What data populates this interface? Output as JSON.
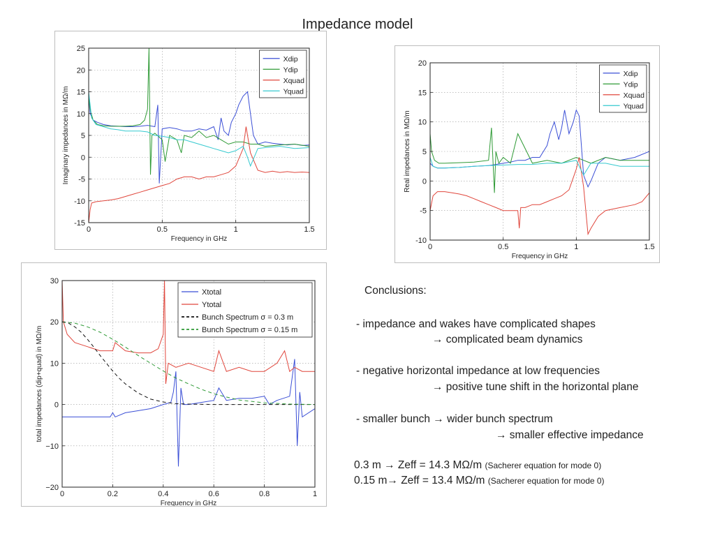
{
  "page": {
    "title": "Impedance model"
  },
  "conclusions": {
    "heading": "Conclusions:",
    "line1": "- impedance and wakes have complicated shapes",
    "line1b": "→ complicated beam dynamics",
    "line2": "- negative horizontal impedance at low frequencies",
    "line2b": "→ positive tune shift in the horizontal plane",
    "line3": "- smaller bunch → wider bunch spectrum",
    "line3b": "→ smaller effective impedance",
    "zeff1": "0.3 m → Zeff = 14.3 MΩ/m",
    "zeff1_note": "(Sacherer equation for mode 0)",
    "zeff2": "0.15 m→ Zeff = 13.4 MΩ/m",
    "zeff2_note": "(Sacherer equation for mode 0)"
  },
  "chart_data": [
    {
      "id": "imag",
      "type": "line",
      "xlabel": "Frequency in GHz",
      "ylabel": "Imaginary impedances in MΩ/m",
      "xlim": [
        0,
        1.5
      ],
      "ylim": [
        -15,
        25
      ],
      "xticks": [
        0,
        0.5,
        1,
        1.5
      ],
      "xtick_labels": [
        "0",
        "0.5",
        "1",
        "1.5"
      ],
      "yticks": [
        -15,
        -10,
        -5,
        0,
        5,
        10,
        15,
        20,
        25
      ],
      "ytick_labels": [
        "-15",
        "-10",
        "-5",
        "0",
        "5",
        "10",
        "15",
        "20",
        "25"
      ],
      "grid": true,
      "legend_position": "top-right",
      "series": [
        {
          "name": "Xdip",
          "color": "#3b4fd6",
          "dash": "",
          "x": [
            0.0,
            0.01,
            0.03,
            0.06,
            0.1,
            0.15,
            0.2,
            0.25,
            0.3,
            0.35,
            0.4,
            0.45,
            0.47,
            0.48,
            0.5,
            0.55,
            0.6,
            0.65,
            0.7,
            0.75,
            0.8,
            0.85,
            0.88,
            0.9,
            0.92,
            0.95,
            0.97,
            1.0,
            1.02,
            1.05,
            1.08,
            1.1,
            1.12,
            1.15,
            1.2,
            1.25,
            1.3,
            1.35,
            1.4,
            1.45,
            1.5
          ],
          "y": [
            14,
            10,
            8.5,
            8,
            7.5,
            7.2,
            7.1,
            7,
            7,
            7.1,
            7.3,
            7,
            12,
            -6,
            6.5,
            6.8,
            6.5,
            6,
            6,
            6.5,
            6.2,
            7,
            4,
            9,
            6,
            5,
            8,
            10,
            12,
            14,
            15,
            10,
            5,
            3,
            3.5,
            3.2,
            3,
            2.8,
            3,
            2.7,
            2.8
          ]
        },
        {
          "name": "Ydip",
          "color": "#2e9a35",
          "dash": "",
          "x": [
            0.0,
            0.01,
            0.03,
            0.06,
            0.1,
            0.15,
            0.2,
            0.25,
            0.3,
            0.35,
            0.38,
            0.4,
            0.41,
            0.42,
            0.43,
            0.45,
            0.5,
            0.52,
            0.55,
            0.6,
            0.63,
            0.65,
            0.7,
            0.75,
            0.8,
            0.85,
            0.9,
            0.95,
            1.0,
            1.05,
            1.1,
            1.15,
            1.2,
            1.3,
            1.4,
            1.5
          ],
          "y": [
            14,
            11,
            8.5,
            7.5,
            7.2,
            7.1,
            7.1,
            7.1,
            7.2,
            7.5,
            8.5,
            11,
            25,
            -4,
            5,
            5.5,
            4,
            -1,
            5,
            4,
            1,
            5,
            4.5,
            6,
            4.5,
            5,
            4,
            3,
            3.5,
            3.5,
            3,
            3,
            2.5,
            2.8,
            3,
            2.5
          ]
        },
        {
          "name": "Xquad",
          "color": "#e0463c",
          "dash": "",
          "x": [
            0.0,
            0.01,
            0.02,
            0.05,
            0.1,
            0.15,
            0.2,
            0.25,
            0.3,
            0.35,
            0.4,
            0.45,
            0.5,
            0.55,
            0.6,
            0.65,
            0.7,
            0.75,
            0.8,
            0.85,
            0.9,
            0.95,
            1.0,
            1.05,
            1.07,
            1.1,
            1.15,
            1.2,
            1.25,
            1.3,
            1.35,
            1.4,
            1.45,
            1.5
          ],
          "y": [
            -15,
            -12,
            -10.5,
            -10.2,
            -10,
            -9.8,
            -9.5,
            -9,
            -8.5,
            -8,
            -7.5,
            -7,
            -6.5,
            -6,
            -5,
            -4.5,
            -4.5,
            -5,
            -4.5,
            -4.5,
            -4,
            -3.5,
            -2,
            2,
            7,
            1,
            -3,
            -3.5,
            -3.2,
            -3.5,
            -3.3,
            -3.5,
            -3.4,
            -3.5
          ]
        },
        {
          "name": "Yquad",
          "color": "#35c9cf",
          "dash": "",
          "x": [
            0.0,
            0.02,
            0.05,
            0.1,
            0.15,
            0.2,
            0.25,
            0.3,
            0.35,
            0.4,
            0.45,
            0.5,
            0.55,
            0.6,
            0.65,
            0.7,
            0.75,
            0.8,
            0.85,
            0.9,
            0.95,
            1.0,
            1.05,
            1.08,
            1.1,
            1.15,
            1.2,
            1.3,
            1.4,
            1.5
          ],
          "y": [
            15,
            9,
            7.5,
            7,
            6.5,
            6.3,
            6,
            6,
            6,
            5.8,
            5,
            4.8,
            4.5,
            4,
            4,
            3.5,
            3,
            2.5,
            2,
            1.5,
            1,
            1.5,
            2.5,
            0,
            -2,
            2,
            2.2,
            2.5,
            2,
            2.2
          ]
        }
      ]
    },
    {
      "id": "real",
      "type": "line",
      "xlabel": "Frequency in GHz",
      "ylabel": "Real impedances in MΩ/m",
      "xlim": [
        0,
        1.5
      ],
      "ylim": [
        -10,
        20
      ],
      "xticks": [
        0,
        0.5,
        1,
        1.5
      ],
      "xtick_labels": [
        "0",
        "0.5",
        "1",
        "1.5"
      ],
      "yticks": [
        -10,
        -5,
        0,
        5,
        10,
        15,
        20
      ],
      "ytick_labels": [
        "-10",
        "-5",
        "0",
        "5",
        "10",
        "15",
        "20"
      ],
      "grid": true,
      "legend_position": "top-right",
      "series": [
        {
          "name": "Xdip",
          "color": "#3b4fd6",
          "dash": "",
          "x": [
            0.0,
            0.02,
            0.05,
            0.1,
            0.2,
            0.3,
            0.4,
            0.45,
            0.5,
            0.55,
            0.6,
            0.65,
            0.7,
            0.75,
            0.8,
            0.82,
            0.85,
            0.88,
            0.9,
            0.92,
            0.95,
            0.98,
            1.0,
            1.02,
            1.05,
            1.08,
            1.1,
            1.15,
            1.2,
            1.3,
            1.4,
            1.5
          ],
          "y": [
            3,
            2.5,
            2.2,
            2.2,
            2.3,
            2.5,
            2.6,
            2.8,
            3,
            3.2,
            3.5,
            3.5,
            4,
            4,
            6,
            8,
            10,
            7,
            9,
            12,
            8,
            10,
            12,
            11,
            1,
            -1,
            0,
            3,
            4,
            3.5,
            4,
            5
          ]
        },
        {
          "name": "Ydip",
          "color": "#2e9a35",
          "dash": "",
          "x": [
            0.0,
            0.01,
            0.03,
            0.06,
            0.1,
            0.2,
            0.3,
            0.4,
            0.42,
            0.44,
            0.45,
            0.47,
            0.5,
            0.55,
            0.6,
            0.7,
            0.8,
            0.9,
            1.0,
            1.05,
            1.1,
            1.2,
            1.3,
            1.4,
            1.5
          ],
          "y": [
            8,
            5,
            3.5,
            3,
            3,
            3.1,
            3.2,
            3.5,
            9,
            -2,
            5,
            3,
            4,
            3,
            8,
            3,
            3.5,
            3,
            4,
            3.5,
            3,
            4,
            3.5,
            3.5,
            3.5
          ]
        },
        {
          "name": "Xquad",
          "color": "#e0463c",
          "dash": "",
          "x": [
            0.0,
            0.02,
            0.05,
            0.1,
            0.15,
            0.2,
            0.25,
            0.3,
            0.35,
            0.4,
            0.45,
            0.5,
            0.55,
            0.6,
            0.61,
            0.62,
            0.65,
            0.7,
            0.75,
            0.8,
            0.85,
            0.9,
            0.95,
            1.0,
            1.02,
            1.05,
            1.08,
            1.1,
            1.15,
            1.2,
            1.3,
            1.4,
            1.45,
            1.5
          ],
          "y": [
            -5,
            -2.5,
            -1.8,
            -1.8,
            -2,
            -2.2,
            -2.5,
            -3,
            -3.5,
            -4,
            -4.5,
            -5,
            -5,
            -5,
            -8,
            -4.5,
            -4.5,
            -4,
            -4,
            -3.5,
            -3,
            -2.5,
            -1.5,
            2,
            4,
            -1,
            -9,
            -8,
            -6,
            -5,
            -4.5,
            -4,
            -3.5,
            -2
          ]
        },
        {
          "name": "Yquad",
          "color": "#35c9cf",
          "dash": "",
          "x": [
            0.0,
            0.02,
            0.05,
            0.1,
            0.2,
            0.3,
            0.4,
            0.5,
            0.6,
            0.7,
            0.8,
            0.9,
            1.0,
            1.05,
            1.1,
            1.2,
            1.3,
            1.4,
            1.5
          ],
          "y": [
            4,
            2.5,
            2.2,
            2.2,
            2.3,
            2.5,
            2.6,
            2.7,
            2.8,
            2.8,
            3,
            3,
            3.5,
            1,
            3,
            3,
            2.5,
            2.5,
            2.5
          ]
        }
      ]
    },
    {
      "id": "total",
      "type": "line",
      "xlabel": "Frequency in GHz",
      "ylabel": "total impedances (dip+quad) in MΩ/m",
      "xlim": [
        0,
        1
      ],
      "ylim": [
        -20,
        30
      ],
      "xticks": [
        0,
        0.2,
        0.4,
        0.6,
        0.8,
        1
      ],
      "xtick_labels": [
        "0",
        "0.2",
        "0.4",
        "0.6",
        "0.8",
        "1"
      ],
      "yticks": [
        -20,
        -10,
        0,
        10,
        20,
        30
      ],
      "ytick_labels": [
        "−20",
        "−10",
        "0",
        "10",
        "20",
        "30"
      ],
      "grid": true,
      "legend_position": "top-right",
      "series": [
        {
          "name": "Xtotal",
          "color": "#3b4fd6",
          "dash": "",
          "x": [
            0.0,
            0.05,
            0.1,
            0.15,
            0.19,
            0.2,
            0.21,
            0.25,
            0.3,
            0.35,
            0.4,
            0.43,
            0.44,
            0.45,
            0.46,
            0.47,
            0.48,
            0.5,
            0.55,
            0.6,
            0.62,
            0.65,
            0.7,
            0.75,
            0.8,
            0.82,
            0.85,
            0.9,
            0.92,
            0.93,
            0.94,
            0.95,
            1.0
          ],
          "y": [
            -3,
            -3,
            -3,
            -3,
            -3,
            -2,
            -3,
            -2,
            -1.5,
            -1,
            0,
            0.5,
            3,
            8,
            -15,
            4,
            0,
            0,
            0.5,
            1,
            4,
            1,
            1.5,
            1.5,
            2,
            0,
            1,
            2,
            11,
            -10,
            3,
            -3,
            -1
          ]
        },
        {
          "name": "Ytotal",
          "color": "#e0463c",
          "dash": "",
          "x": [
            0.0,
            0.005,
            0.02,
            0.05,
            0.1,
            0.15,
            0.2,
            0.21,
            0.25,
            0.3,
            0.35,
            0.38,
            0.4,
            0.405,
            0.41,
            0.42,
            0.45,
            0.5,
            0.55,
            0.6,
            0.62,
            0.65,
            0.7,
            0.75,
            0.8,
            0.85,
            0.88,
            0.9,
            0.92,
            0.95,
            1.0
          ],
          "y": [
            30,
            20,
            17,
            15,
            14,
            13,
            13,
            15,
            13,
            12.5,
            12.5,
            13.5,
            17,
            30,
            5,
            10,
            9,
            10,
            9,
            8,
            13,
            8,
            9,
            8,
            8,
            10,
            13,
            8,
            9,
            8,
            8
          ]
        },
        {
          "name": "Bunch Spectrum σ = 0.3 m",
          "color": "#111111",
          "dash": "5,4",
          "x": [
            0.0,
            0.025,
            0.05,
            0.075,
            0.1,
            0.125,
            0.15,
            0.175,
            0.2,
            0.225,
            0.25,
            0.3,
            0.35,
            0.4,
            0.45,
            0.5,
            0.6,
            0.7,
            0.8,
            0.9,
            1.0
          ],
          "y": [
            20,
            19.7,
            18.8,
            17.5,
            15.8,
            13.9,
            11.9,
            10,
            8.1,
            6.4,
            5,
            2.8,
            1.3,
            0.6,
            0.2,
            0.1,
            0,
            0,
            0,
            0,
            0
          ]
        },
        {
          "name": "Bunch Spectrum σ = 0.15 m",
          "color": "#2e9a35",
          "dash": "5,4",
          "x": [
            0.0,
            0.05,
            0.1,
            0.15,
            0.2,
            0.25,
            0.3,
            0.35,
            0.4,
            0.45,
            0.5,
            0.55,
            0.6,
            0.65,
            0.7,
            0.8,
            0.9,
            1.0
          ],
          "y": [
            20,
            19.7,
            18.8,
            17.5,
            15.8,
            13.9,
            11.9,
            10,
            8.1,
            6.4,
            5,
            3.7,
            2.6,
            1.8,
            1.1,
            0.4,
            0.1,
            0
          ]
        }
      ]
    }
  ]
}
